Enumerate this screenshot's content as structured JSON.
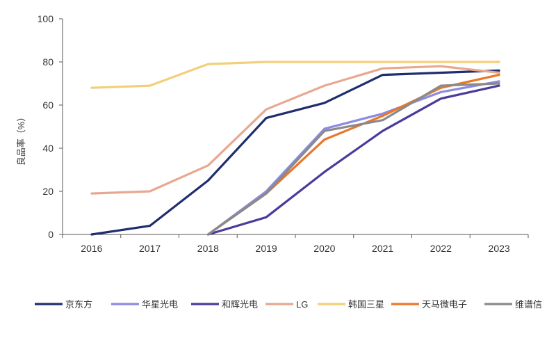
{
  "chart_data": {
    "type": "line",
    "title": "",
    "xlabel": "",
    "ylabel": "良品率（%）",
    "x": [
      "2016",
      "2017",
      "2018",
      "2019",
      "2020",
      "2021",
      "2022",
      "2023"
    ],
    "ylim": [
      0,
      100
    ],
    "yticks": [
      0,
      20,
      40,
      60,
      80,
      100
    ],
    "grid": false,
    "legend": "bottom",
    "series": [
      {
        "name": "京东方",
        "color": "#1f2d6e",
        "values": [
          0,
          4,
          25,
          54,
          61,
          74,
          75,
          76
        ]
      },
      {
        "name": "华星光电",
        "color": "#8b8be0",
        "values": [
          null,
          null,
          0,
          20,
          49,
          56,
          66,
          71
        ]
      },
      {
        "name": "和辉光电",
        "color": "#4b3b9a",
        "values": [
          null,
          null,
          0,
          8,
          29,
          48,
          63,
          69
        ]
      },
      {
        "name": "LG",
        "color": "#e8a890",
        "values": [
          19,
          20,
          32,
          58,
          69,
          77,
          78,
          75
        ]
      },
      {
        "name": "韩国三星",
        "color": "#f2cf7a",
        "values": [
          68,
          69,
          79,
          80,
          80,
          80,
          80,
          80
        ]
      },
      {
        "name": "天马微电子",
        "color": "#e9772a",
        "values": [
          null,
          null,
          0,
          19,
          44,
          55,
          68,
          74
        ]
      },
      {
        "name": "维谱信",
        "color": "#8a8a8a",
        "values": [
          null,
          null,
          0,
          19,
          48,
          53,
          69,
          70
        ]
      }
    ]
  }
}
